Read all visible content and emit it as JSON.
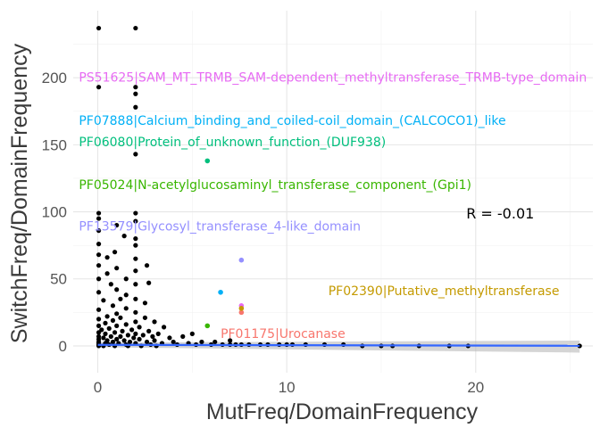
{
  "chart_data": {
    "type": "scatter",
    "xlabel": "MutFreq/DomainFrequency",
    "ylabel": "SwitchFreq/DomainFrequency",
    "xlim": [
      -1.3,
      26.2
    ],
    "ylim": [
      -20,
      250
    ],
    "x_ticks": [
      {
        "value": 0,
        "label": "0"
      },
      {
        "value": 10,
        "label": "10"
      },
      {
        "value": 20,
        "label": "20"
      }
    ],
    "y_ticks": [
      {
        "value": 0,
        "label": "0"
      },
      {
        "value": 50,
        "label": "50"
      },
      {
        "value": 100,
        "label": "100"
      },
      {
        "value": 150,
        "label": "150"
      },
      {
        "value": 200,
        "label": "200"
      }
    ],
    "grid": true,
    "point_color": "#000000",
    "trend_color": "#3366ff",
    "ci_color": "#b3b3b3",
    "correlation_label": "R = -0.01",
    "correlation_pos": {
      "x": 19.5,
      "y": 99
    },
    "trend": {
      "x": [
        0,
        25.5
      ],
      "y": [
        0.8,
        0.1
      ],
      "ci_lower": [
        -1,
        -5
      ],
      "ci_upper": [
        2.5,
        4
      ]
    },
    "points": [
      {
        "x": 0.05,
        "y": 237
      },
      {
        "x": 2,
        "y": 237
      },
      {
        "x": 0.05,
        "y": 193
      },
      {
        "x": 2,
        "y": 193
      },
      {
        "x": 2,
        "y": 188
      },
      {
        "x": 2,
        "y": 178
      },
      {
        "x": 2,
        "y": 143
      },
      {
        "x": 0.05,
        "y": 99
      },
      {
        "x": 2,
        "y": 99
      },
      {
        "x": 0.05,
        "y": 95
      },
      {
        "x": 2,
        "y": 93
      },
      {
        "x": 1.0,
        "y": 90
      },
      {
        "x": 0.05,
        "y": 86
      },
      {
        "x": 2,
        "y": 80
      },
      {
        "x": 0.05,
        "y": 76
      },
      {
        "x": 2,
        "y": 75
      },
      {
        "x": 0.05,
        "y": 68
      },
      {
        "x": 0.5,
        "y": 66
      },
      {
        "x": 2,
        "y": 65
      },
      {
        "x": 0.05,
        "y": 60
      },
      {
        "x": 1.0,
        "y": 58
      },
      {
        "x": 2,
        "y": 56
      },
      {
        "x": 2.6,
        "y": 60
      },
      {
        "x": 0.5,
        "y": 54
      },
      {
        "x": 0.05,
        "y": 50
      },
      {
        "x": 1.5,
        "y": 50
      },
      {
        "x": 2,
        "y": 46
      },
      {
        "x": 0.7,
        "y": 46
      },
      {
        "x": 2.7,
        "y": 47
      },
      {
        "x": 1.0,
        "y": 42
      },
      {
        "x": 0.05,
        "y": 40
      },
      {
        "x": 1.5,
        "y": 38
      },
      {
        "x": 2,
        "y": 35
      },
      {
        "x": 0.3,
        "y": 34
      },
      {
        "x": 2.5,
        "y": 32
      },
      {
        "x": 0.8,
        "y": 30
      },
      {
        "x": 1.5,
        "y": 28
      },
      {
        "x": 0.05,
        "y": 27
      },
      {
        "x": 2,
        "y": 25
      },
      {
        "x": 1.0,
        "y": 24
      },
      {
        "x": 0.5,
        "y": 22
      },
      {
        "x": 1.2,
        "y": 21
      },
      {
        "x": 2.5,
        "y": 21
      },
      {
        "x": 0.05,
        "y": 20
      },
      {
        "x": 0.8,
        "y": 19
      },
      {
        "x": 2,
        "y": 18
      },
      {
        "x": 3.0,
        "y": 18
      },
      {
        "x": 0.4,
        "y": 17
      },
      {
        "x": 1.5,
        "y": 16
      },
      {
        "x": 0.05,
        "y": 15
      },
      {
        "x": 1.0,
        "y": 15
      },
      {
        "x": 2.2,
        "y": 14
      },
      {
        "x": 3.5,
        "y": 14
      },
      {
        "x": 0.6,
        "y": 13
      },
      {
        "x": 1.8,
        "y": 12
      },
      {
        "x": 0.2,
        "y": 12
      },
      {
        "x": 1.3,
        "y": 11
      },
      {
        "x": 2.7,
        "y": 11
      },
      {
        "x": 0.05,
        "y": 10
      },
      {
        "x": 0.9,
        "y": 10
      },
      {
        "x": 2.0,
        "y": 9
      },
      {
        "x": 3.2,
        "y": 9
      },
      {
        "x": 0.4,
        "y": 9
      },
      {
        "x": 1.6,
        "y": 8
      },
      {
        "x": 2.4,
        "y": 8
      },
      {
        "x": 0.05,
        "y": 7
      },
      {
        "x": 0.7,
        "y": 7
      },
      {
        "x": 1.2,
        "y": 7
      },
      {
        "x": 2.9,
        "y": 7
      },
      {
        "x": 0.3,
        "y": 6
      },
      {
        "x": 1.9,
        "y": 6
      },
      {
        "x": 3.8,
        "y": 6
      },
      {
        "x": 0.05,
        "y": 5
      },
      {
        "x": 1.0,
        "y": 5
      },
      {
        "x": 2.2,
        "y": 5
      },
      {
        "x": 4.5,
        "y": 7
      },
      {
        "x": 0.5,
        "y": 4
      },
      {
        "x": 1.4,
        "y": 4
      },
      {
        "x": 3.0,
        "y": 4
      },
      {
        "x": 5.0,
        "y": 9
      },
      {
        "x": 0.05,
        "y": 3
      },
      {
        "x": 0.8,
        "y": 3
      },
      {
        "x": 1.7,
        "y": 3
      },
      {
        "x": 2.6,
        "y": 3
      },
      {
        "x": 4.0,
        "y": 3
      },
      {
        "x": 0.05,
        "y": 2
      },
      {
        "x": 0.4,
        "y": 2
      },
      {
        "x": 1.1,
        "y": 2
      },
      {
        "x": 2.0,
        "y": 2
      },
      {
        "x": 3.4,
        "y": 2
      },
      {
        "x": 0.05,
        "y": 1
      },
      {
        "x": 0.6,
        "y": 1
      },
      {
        "x": 1.5,
        "y": 1
      },
      {
        "x": 2.8,
        "y": 1
      },
      {
        "x": 4.8,
        "y": 2
      },
      {
        "x": 0.05,
        "y": 0
      },
      {
        "x": 0.3,
        "y": 0
      },
      {
        "x": 0.9,
        "y": 0
      },
      {
        "x": 1.6,
        "y": 0
      },
      {
        "x": 2.3,
        "y": 0
      },
      {
        "x": 3.1,
        "y": 0
      },
      {
        "x": 4.2,
        "y": 1
      },
      {
        "x": 5.2,
        "y": 1
      },
      {
        "x": 6.0,
        "y": 1
      },
      {
        "x": 6.6,
        "y": 1
      },
      {
        "x": 7.0,
        "y": 1
      },
      {
        "x": 7.3,
        "y": 1
      },
      {
        "x": 7.6,
        "y": 1
      },
      {
        "x": 8.0,
        "y": 1
      },
      {
        "x": 8.6,
        "y": 1
      },
      {
        "x": 9.0,
        "y": 1
      },
      {
        "x": 9.6,
        "y": 1
      },
      {
        "x": 10.0,
        "y": 1
      },
      {
        "x": 10.3,
        "y": 1
      },
      {
        "x": 11.0,
        "y": 1
      },
      {
        "x": 12.0,
        "y": 1
      },
      {
        "x": 13.0,
        "y": 1
      },
      {
        "x": 14.0,
        "y": 0
      },
      {
        "x": 15.0,
        "y": 0
      },
      {
        "x": 15.6,
        "y": 0
      },
      {
        "x": 17.0,
        "y": 0
      },
      {
        "x": 18.6,
        "y": 0
      },
      {
        "x": 19.6,
        "y": 0
      },
      {
        "x": 25.5,
        "y": 0
      },
      {
        "x": 5.5,
        "y": 3
      },
      {
        "x": 6.2,
        "y": 3
      },
      {
        "x": 7.0,
        "y": 4
      },
      {
        "x": 1.2,
        "y": 35
      },
      {
        "x": 0.9,
        "y": 70
      },
      {
        "x": 1.4,
        "y": 82
      }
    ],
    "highlighted": [
      {
        "x": 7.6,
        "y": 64,
        "color": "#9590ff",
        "label": "PF13579|Glycosyl_transferase_4-like_domain",
        "label_pos": {
          "x": -1.0,
          "y": 86
        }
      },
      {
        "x": 5.8,
        "y": 138,
        "color": "#00bf7d",
        "label": "PF06080|Protein_of_unknown_function_(DUF938)",
        "label_pos": {
          "x": -1.0,
          "y": 149
        }
      },
      {
        "x": 6.5,
        "y": 40,
        "color": "#00b0f6",
        "label": "PF07888|Calcium_binding_and_coiled-coil_domain_(CALCOCO1)_like",
        "label_pos": {
          "x": -1.0,
          "y": 165
        }
      },
      {
        "x": 7.6,
        "y": 30,
        "color": "#e76bf3",
        "label": "PS51625|SAM_MT_TRMB_SAM-dependent_methyltransferase_TRMB-type_domain",
        "label_pos": {
          "x": -1.0,
          "y": 197
        }
      },
      {
        "x": 5.8,
        "y": 15,
        "color": "#39b600",
        "label": "PF05024|N-acetylglucosaminyl_transferase_component_(Gpi1)",
        "label_pos": {
          "x": -1.0,
          "y": 117
        }
      },
      {
        "x": 7.6,
        "y": 25,
        "color": "#f8766d",
        "label": "PF01175|Urocanase",
        "label_pos": {
          "x": 6.5,
          "y": 6
        }
      },
      {
        "x": 7.6,
        "y": 28,
        "color": "#c49a00",
        "label": "PF02390|Putative_methyltransferase",
        "label_pos": {
          "x": 12.2,
          "y": 38
        }
      }
    ]
  }
}
